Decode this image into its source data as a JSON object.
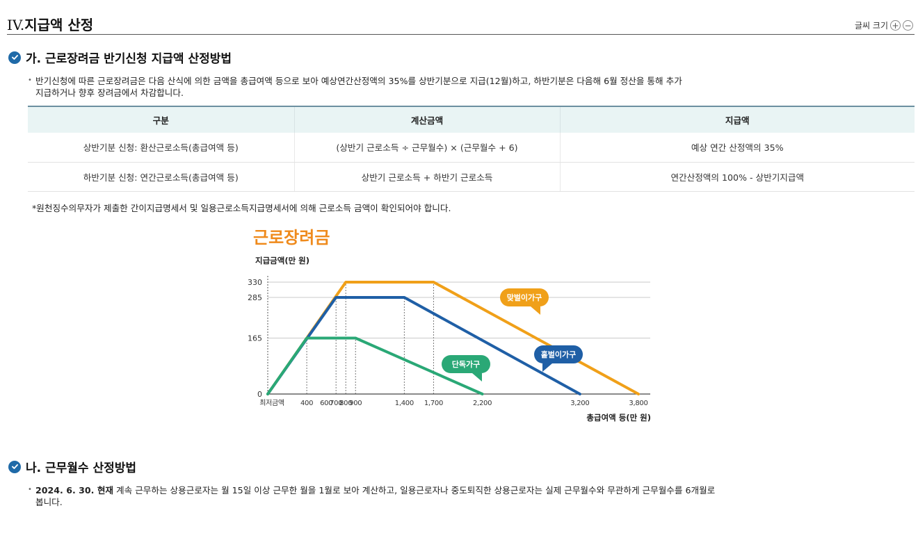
{
  "header": {
    "roman": "IV.",
    "title": "지급액 산정",
    "font_size_label": "글씨 크기",
    "increase_symbol": "+",
    "decrease_symbol": "−"
  },
  "section_a": {
    "heading": "가. 근로장려금 반기신청 지급액 산정방법",
    "bullet_line1": "반기신청에 따른 근로장려금은 다음 산식에 의한 금액을 총급여액 등으로 보아 예상연간산정액의 35%를 상반기분으로 지급(12월)하고, 하반기분은 다음해 6월 정산을 통해 추가",
    "bullet_line2": "지급하거나 향후 장려금에서 차감합니다.",
    "table": {
      "headers": [
        "구분",
        "계산금액",
        "지급액"
      ],
      "rows": [
        [
          "상반기분 신청: 환산근로소득(총급여액 등)",
          "(상반기 근로소득 ÷ 근무월수) × (근무월수 + 6)",
          "예상 연간 산정액의 35%"
        ],
        [
          "하반기분 신청: 연간근로소득(총급여액 등)",
          "상반기 근로소득 + 하반기 근로소득",
          "연간산정액의 100% - 상반기지급액"
        ]
      ]
    },
    "note": "*원천징수의무자가 제출한 간이지급명세서 및 일용근로소득지급명세서에 의해 근로소득 금액이 확인되어야 합니다."
  },
  "chart_data": {
    "type": "line",
    "title": "근로장려금",
    "ylabel": "지급금액(만 원)",
    "xlabel": "총급여액 등(만 원)",
    "x_ticks": [
      "최저금액",
      "400",
      "600",
      "700",
      "800",
      "900",
      "1,400",
      "1,700",
      "2,200",
      "3,200",
      "3,800"
    ],
    "y_ticks": [
      "0",
      "165",
      "285",
      "330"
    ],
    "ylim": [
      0,
      330
    ],
    "series": [
      {
        "name": "맞벌이가구",
        "color": "#f0a019",
        "points": [
          [
            0,
            0
          ],
          [
            800,
            330
          ],
          [
            1700,
            330
          ],
          [
            3800,
            0
          ]
        ]
      },
      {
        "name": "홑벌이가구",
        "color": "#1f5fa6",
        "points": [
          [
            0,
            0
          ],
          [
            700,
            285
          ],
          [
            1400,
            285
          ],
          [
            3200,
            0
          ]
        ]
      },
      {
        "name": "단독가구",
        "color": "#2aa876",
        "points": [
          [
            0,
            0
          ],
          [
            400,
            165
          ],
          [
            900,
            165
          ],
          [
            2200,
            0
          ]
        ]
      }
    ]
  },
  "section_b": {
    "heading": "나. 근무월수 산정방법",
    "bold_prefix": "2024. 6. 30. 현재",
    "bullet_line1": " 계속 근무하는 상용근로자는 월 15일 이상 근무한 월을 1월로 보아 계산하고, 일용근로자나 중도퇴직한 상용근로자는 실제 근무월수와 무관하게 근무월수를 6개월로",
    "bullet_line2": "봅니다."
  }
}
